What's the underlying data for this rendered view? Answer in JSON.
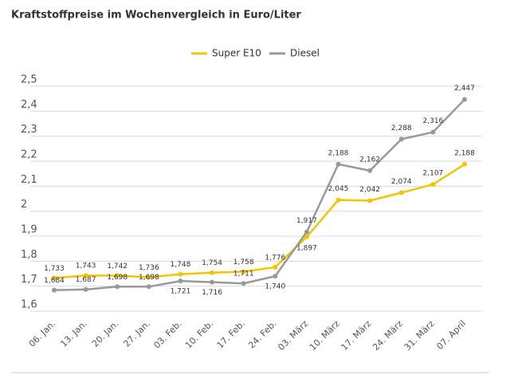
{
  "chart_data": {
    "type": "line",
    "title": "Kraftstoffpreise im Wochenvergleich in Euro/Liter",
    "categories": [
      "06. Jan.",
      "13. Jan.",
      "20. Jan.",
      "27. Jan.",
      "03. Feb.",
      "10. Feb.",
      "17. Feb.",
      "24. Feb.",
      "03. März",
      "10. März",
      "17. März",
      "24. März",
      "31. März",
      "07. April"
    ],
    "series": [
      {
        "name": "Super E10",
        "color": "#f2c500",
        "values": [
          1.733,
          1.743,
          1.742,
          1.736,
          1.748,
          1.754,
          1.758,
          1.776,
          1.897,
          2.045,
          2.042,
          2.074,
          2.107,
          2.188
        ],
        "value_labels": [
          "1,733",
          "1,743",
          "1,742",
          "1,736",
          "1,748",
          "1,754",
          "1,758",
          "1,776",
          "1,897",
          "2,045",
          "2,042",
          "2,074",
          "2,107",
          "2,188"
        ]
      },
      {
        "name": "Diesel",
        "color": "#999999",
        "values": [
          1.684,
          1.687,
          1.698,
          1.698,
          1.721,
          1.716,
          1.711,
          1.74,
          1.917,
          2.188,
          2.162,
          2.288,
          2.316,
          2.447
        ],
        "value_labels": [
          "1,684",
          "1,687",
          "1,698",
          "1,698",
          "1,721",
          "1,716",
          "1,711",
          "1,740",
          "1,917",
          "2,188",
          "2,162",
          "2,288",
          "2,316",
          "2,447"
        ]
      }
    ],
    "ylim": [
      1.6,
      2.5
    ],
    "yticks": [
      {
        "value": 1.6,
        "label": "1,6"
      },
      {
        "value": 1.7,
        "label": "1,7"
      },
      {
        "value": 1.8,
        "label": "1,8"
      },
      {
        "value": 1.9,
        "label": "1,9"
      },
      2,
      {
        "value": 2.1,
        "label": "2,1"
      },
      {
        "value": 2.2,
        "label": "2,2"
      },
      {
        "value": 2.3,
        "label": "2,3"
      },
      {
        "value": 2.4,
        "label": "2,4"
      },
      {
        "value": 2.5,
        "label": "2,5"
      }
    ],
    "grid": true,
    "legend": "top"
  }
}
